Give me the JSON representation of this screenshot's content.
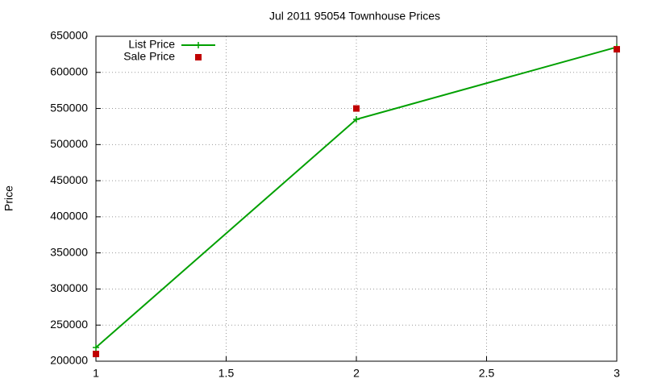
{
  "chart_data": {
    "type": "line",
    "title": "Jul 2011 95054 Townhouse Prices",
    "ylabel": "Price",
    "x": [
      1,
      2,
      3
    ],
    "series": [
      {
        "name": "List Price",
        "color": "#00a000",
        "mode": "lines+points",
        "values": [
          219000,
          535000,
          635000
        ]
      },
      {
        "name": "Sale Price",
        "color": "#c00000",
        "mode": "points",
        "values": [
          210000,
          550000,
          632000
        ]
      }
    ],
    "xlim": [
      1,
      3
    ],
    "xticks": [
      1,
      1.5,
      2,
      2.5,
      3
    ],
    "ylim": [
      200000,
      650000
    ],
    "yticks": [
      200000,
      250000,
      300000,
      350000,
      400000,
      450000,
      500000,
      550000,
      600000,
      650000
    ],
    "grid": true,
    "legend": "top-left"
  }
}
